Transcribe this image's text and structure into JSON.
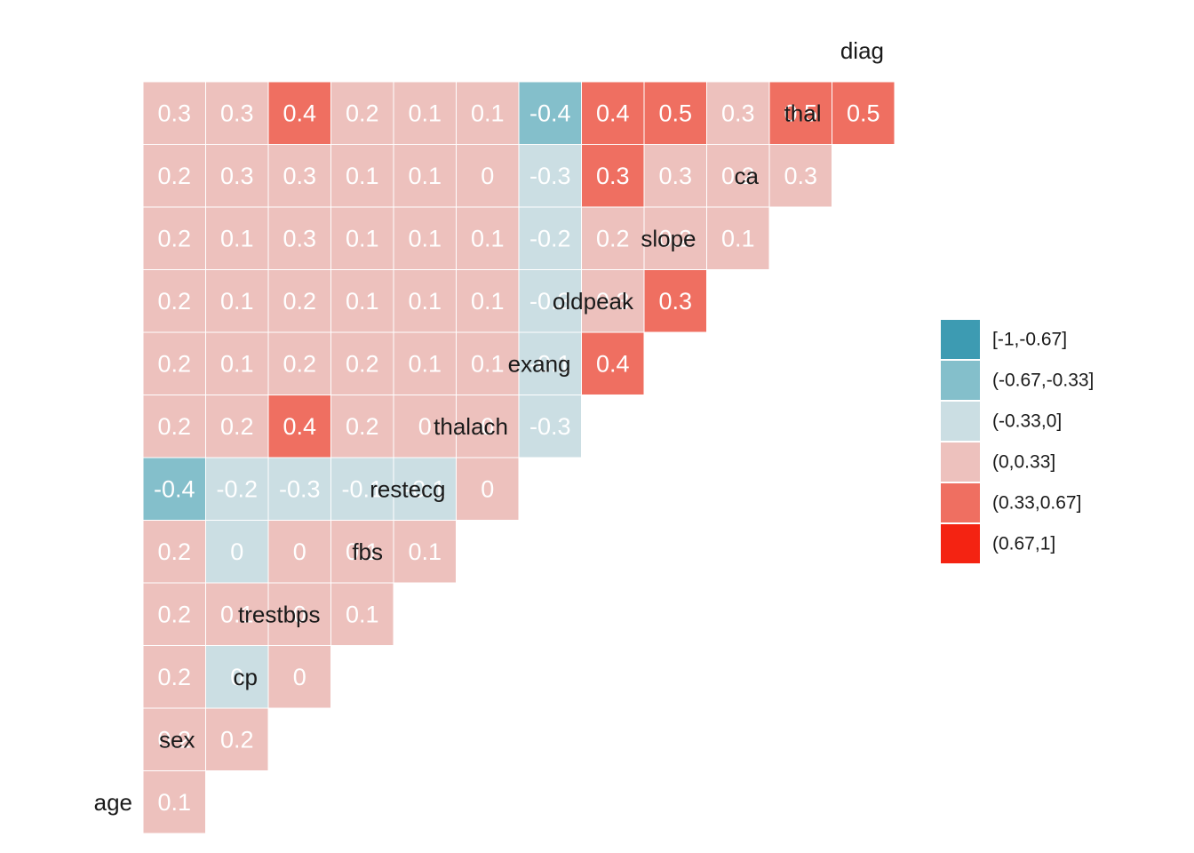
{
  "chart_data": {
    "type": "heatmap",
    "title": "",
    "variables": [
      "age",
      "sex",
      "cp",
      "trestbps",
      "fbs",
      "restecg",
      "thalach",
      "exang",
      "oldpeak",
      "slope",
      "ca",
      "thal",
      "diag"
    ],
    "cells": [
      {
        "row": "sex",
        "col": "age",
        "value": 0.1,
        "label": "0.1"
      },
      {
        "row": "cp",
        "col": "age",
        "value": 0.2,
        "label": "0.2"
      },
      {
        "row": "cp",
        "col": "sex",
        "value": 0.2,
        "label": "0.2"
      },
      {
        "row": "trestbps",
        "col": "age",
        "value": 0.2,
        "label": "0.2"
      },
      {
        "row": "trestbps",
        "col": "sex",
        "value": -0.01,
        "label": "0"
      },
      {
        "row": "trestbps",
        "col": "cp",
        "value": 0.01,
        "label": "0"
      },
      {
        "row": "fbs",
        "col": "age",
        "value": 0.2,
        "label": "0.2"
      },
      {
        "row": "fbs",
        "col": "sex",
        "value": 0.1,
        "label": "0.1"
      },
      {
        "row": "fbs",
        "col": "cp",
        "value": 0.01,
        "label": "0"
      },
      {
        "row": "fbs",
        "col": "trestbps",
        "value": 0.1,
        "label": "0.1"
      },
      {
        "row": "restecg",
        "col": "age",
        "value": 0.2,
        "label": "0.2"
      },
      {
        "row": "restecg",
        "col": "sex",
        "value": -0.01,
        "label": "0"
      },
      {
        "row": "restecg",
        "col": "cp",
        "value": 0.01,
        "label": "0"
      },
      {
        "row": "restecg",
        "col": "trestbps",
        "value": 0.1,
        "label": "0.1"
      },
      {
        "row": "restecg",
        "col": "fbs",
        "value": 0.1,
        "label": "0.1"
      },
      {
        "row": "thalach",
        "col": "age",
        "value": -0.4,
        "label": "-0.4"
      },
      {
        "row": "thalach",
        "col": "sex",
        "value": -0.2,
        "label": "-0.2"
      },
      {
        "row": "thalach",
        "col": "cp",
        "value": -0.3,
        "label": "-0.3"
      },
      {
        "row": "thalach",
        "col": "trestbps",
        "value": -0.1,
        "label": "-0.1"
      },
      {
        "row": "thalach",
        "col": "fbs",
        "value": -0.1,
        "label": "-0.1"
      },
      {
        "row": "thalach",
        "col": "restecg",
        "value": 0.01,
        "label": "0"
      },
      {
        "row": "exang",
        "col": "age",
        "value": 0.2,
        "label": "0.2"
      },
      {
        "row": "exang",
        "col": "sex",
        "value": 0.2,
        "label": "0.2"
      },
      {
        "row": "exang",
        "col": "cp",
        "value": 0.4,
        "label": "0.4"
      },
      {
        "row": "exang",
        "col": "trestbps",
        "value": 0.2,
        "label": "0.2"
      },
      {
        "row": "exang",
        "col": "fbs",
        "value": 0.01,
        "label": "0"
      },
      {
        "row": "exang",
        "col": "restecg",
        "value": 0.01,
        "label": "0"
      },
      {
        "row": "exang",
        "col": "thalach",
        "value": -0.3,
        "label": "-0.3"
      },
      {
        "row": "oldpeak",
        "col": "age",
        "value": 0.2,
        "label": "0.2"
      },
      {
        "row": "oldpeak",
        "col": "sex",
        "value": 0.1,
        "label": "0.1"
      },
      {
        "row": "oldpeak",
        "col": "cp",
        "value": 0.2,
        "label": "0.2"
      },
      {
        "row": "oldpeak",
        "col": "trestbps",
        "value": 0.2,
        "label": "0.2"
      },
      {
        "row": "oldpeak",
        "col": "fbs",
        "value": 0.1,
        "label": "0.1"
      },
      {
        "row": "oldpeak",
        "col": "restecg",
        "value": 0.1,
        "label": "0.1"
      },
      {
        "row": "oldpeak",
        "col": "thalach",
        "value": -0.1,
        "label": "-0.1"
      },
      {
        "row": "oldpeak",
        "col": "exang",
        "value": 0.4,
        "label": "0.4"
      },
      {
        "row": "slope",
        "col": "age",
        "value": 0.2,
        "label": "0.2"
      },
      {
        "row": "slope",
        "col": "sex",
        "value": 0.1,
        "label": "0.1"
      },
      {
        "row": "slope",
        "col": "cp",
        "value": 0.2,
        "label": "0.2"
      },
      {
        "row": "slope",
        "col": "trestbps",
        "value": 0.1,
        "label": "0.1"
      },
      {
        "row": "slope",
        "col": "fbs",
        "value": 0.1,
        "label": "0.1"
      },
      {
        "row": "slope",
        "col": "restecg",
        "value": 0.1,
        "label": "0.1"
      },
      {
        "row": "slope",
        "col": "thalach",
        "value": -0.3,
        "label": "-0.3"
      },
      {
        "row": "slope",
        "col": "exang",
        "value": 0.3,
        "label": "0.3"
      },
      {
        "row": "slope",
        "col": "oldpeak",
        "value": 0.34,
        "label": "0.3"
      },
      {
        "row": "ca",
        "col": "age",
        "value": 0.2,
        "label": "0.2"
      },
      {
        "row": "ca",
        "col": "sex",
        "value": 0.1,
        "label": "0.1"
      },
      {
        "row": "ca",
        "col": "cp",
        "value": 0.3,
        "label": "0.3"
      },
      {
        "row": "ca",
        "col": "trestbps",
        "value": 0.1,
        "label": "0.1"
      },
      {
        "row": "ca",
        "col": "fbs",
        "value": 0.1,
        "label": "0.1"
      },
      {
        "row": "ca",
        "col": "restecg",
        "value": 0.1,
        "label": "0.1"
      },
      {
        "row": "ca",
        "col": "thalach",
        "value": -0.2,
        "label": "-0.2"
      },
      {
        "row": "ca",
        "col": "exang",
        "value": 0.2,
        "label": "0.2"
      },
      {
        "row": "ca",
        "col": "oldpeak",
        "value": 0.2,
        "label": "0.2"
      },
      {
        "row": "ca",
        "col": "slope",
        "value": 0.1,
        "label": "0.1"
      },
      {
        "row": "thal",
        "col": "age",
        "value": 0.2,
        "label": "0.2"
      },
      {
        "row": "thal",
        "col": "sex",
        "value": 0.3,
        "label": "0.3"
      },
      {
        "row": "thal",
        "col": "cp",
        "value": 0.3,
        "label": "0.3"
      },
      {
        "row": "thal",
        "col": "trestbps",
        "value": 0.1,
        "label": "0.1"
      },
      {
        "row": "thal",
        "col": "fbs",
        "value": 0.1,
        "label": "0.1"
      },
      {
        "row": "thal",
        "col": "restecg",
        "value": 0.01,
        "label": "0"
      },
      {
        "row": "thal",
        "col": "thalach",
        "value": -0.3,
        "label": "-0.3"
      },
      {
        "row": "thal",
        "col": "exang",
        "value": 0.34,
        "label": "0.3"
      },
      {
        "row": "thal",
        "col": "oldpeak",
        "value": 0.3,
        "label": "0.3"
      },
      {
        "row": "thal",
        "col": "slope",
        "value": 0.2,
        "label": "0.2"
      },
      {
        "row": "thal",
        "col": "ca",
        "value": 0.3,
        "label": "0.3"
      },
      {
        "row": "diag",
        "col": "age",
        "value": 0.3,
        "label": "0.3"
      },
      {
        "row": "diag",
        "col": "sex",
        "value": 0.3,
        "label": "0.3"
      },
      {
        "row": "diag",
        "col": "cp",
        "value": 0.4,
        "label": "0.4"
      },
      {
        "row": "diag",
        "col": "trestbps",
        "value": 0.2,
        "label": "0.2"
      },
      {
        "row": "diag",
        "col": "fbs",
        "value": 0.1,
        "label": "0.1"
      },
      {
        "row": "diag",
        "col": "restecg",
        "value": 0.1,
        "label": "0.1"
      },
      {
        "row": "diag",
        "col": "thalach",
        "value": -0.4,
        "label": "-0.4"
      },
      {
        "row": "diag",
        "col": "exang",
        "value": 0.4,
        "label": "0.4"
      },
      {
        "row": "diag",
        "col": "oldpeak",
        "value": 0.5,
        "label": "0.5"
      },
      {
        "row": "diag",
        "col": "slope",
        "value": 0.3,
        "label": "0.3"
      },
      {
        "row": "diag",
        "col": "ca",
        "value": 0.5,
        "label": "0.5"
      },
      {
        "row": "diag",
        "col": "thal",
        "value": 0.5,
        "label": "0.5"
      }
    ],
    "legend": {
      "placement": "right",
      "bins": [
        {
          "label": "[-1,-0.67]",
          "min": -1,
          "max": -0.67,
          "color": "#3d9bb2"
        },
        {
          "label": "(-0.67,-0.33]",
          "min": -0.67,
          "max": -0.33,
          "color": "#84bfcb"
        },
        {
          "label": "(-0.33,0]",
          "min": -0.33,
          "max": 0,
          "color": "#cbdee3"
        },
        {
          "label": "(0,0.33]",
          "min": 0,
          "max": 0.33,
          "color": "#edc1bd"
        },
        {
          "label": "(0.33,0.67]",
          "min": 0.33,
          "max": 0.67,
          "color": "#ef6f61"
        },
        {
          "label": "(0.67,1]",
          "min": 0.67,
          "max": 1,
          "color": "#f42312"
        }
      ]
    }
  }
}
